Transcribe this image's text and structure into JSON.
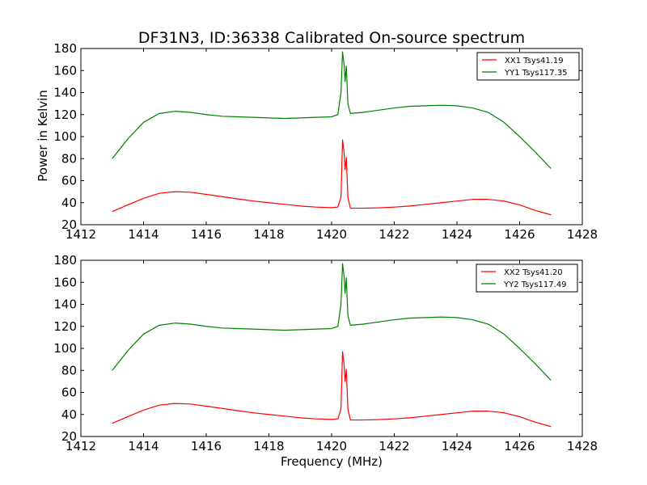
{
  "chart_data": {
    "title": "DF31N3, ID:36338 Calibrated On-source spectrum",
    "xlabel": "Frequency (MHz)",
    "ylabel": "Power in Kelvin",
    "colors": {
      "red": "#ff0000",
      "green": "#007f00"
    },
    "panels": [
      {
        "type": "line",
        "xlim": [
          1412,
          1428
        ],
        "ylim": [
          20,
          180
        ],
        "xticks": [
          "1412",
          "1414",
          "1416",
          "1418",
          "1420",
          "1422",
          "1424",
          "1426",
          "1428"
        ],
        "yticks": [
          "20",
          "40",
          "60",
          "80",
          "100",
          "120",
          "140",
          "160",
          "180"
        ],
        "legend_position": "top-right",
        "series": [
          {
            "name": "XX1 Tsys41.19",
            "color": "#ff0000",
            "x": [
              1413.0,
              1413.5,
              1414.0,
              1414.5,
              1415.0,
              1415.5,
              1416.0,
              1416.5,
              1417.0,
              1417.5,
              1418.0,
              1418.5,
              1419.0,
              1419.5,
              1420.0,
              1420.2,
              1420.3,
              1420.35,
              1420.4,
              1420.43,
              1420.47,
              1420.52,
              1420.6,
              1421.0,
              1421.5,
              1422.0,
              1422.5,
              1423.0,
              1423.5,
              1424.0,
              1424.5,
              1425.0,
              1425.5,
              1426.0,
              1426.5,
              1427.0
            ],
            "y": [
              32,
              38,
              44,
              48.5,
              50,
              49.5,
              47.5,
              45.5,
              43.5,
              41.5,
              40,
              38.5,
              37,
              36,
              35.5,
              36,
              45,
              97,
              85,
              70,
              81,
              45,
              35,
              35,
              35.3,
              36,
              37,
              38.5,
              40,
              41.5,
              43,
              43,
              41.5,
              38,
              33,
              29
            ]
          },
          {
            "name": "YY1 Tsys117.35",
            "color": "#007f00",
            "x": [
              1413.0,
              1413.5,
              1414.0,
              1414.5,
              1415.0,
              1415.5,
              1416.0,
              1416.5,
              1417.0,
              1417.5,
              1418.0,
              1418.5,
              1419.0,
              1419.5,
              1420.0,
              1420.2,
              1420.3,
              1420.35,
              1420.4,
              1420.43,
              1420.47,
              1420.52,
              1420.6,
              1421.0,
              1421.5,
              1422.0,
              1422.5,
              1423.0,
              1423.5,
              1424.0,
              1424.5,
              1425.0,
              1425.5,
              1426.0,
              1426.5,
              1427.0
            ],
            "y": [
              80,
              98,
              113,
              121,
              123,
              122,
              120,
              118.5,
              118,
              117.5,
              117,
              116.5,
              117,
              117.5,
              118,
              120,
              140,
              177,
              165,
              150,
              164,
              130,
              121,
              122,
              124,
              126,
              127.5,
              128,
              128.5,
              128,
              126,
              122,
              113,
              100,
              86,
              71
            ]
          }
        ]
      },
      {
        "type": "line",
        "xlim": [
          1412,
          1428
        ],
        "ylim": [
          20,
          180
        ],
        "xticks": [
          "1412",
          "1414",
          "1416",
          "1418",
          "1420",
          "1422",
          "1424",
          "1426",
          "1428"
        ],
        "yticks": [
          "20",
          "40",
          "60",
          "80",
          "100",
          "120",
          "140",
          "160",
          "180"
        ],
        "legend_position": "top-right",
        "series": [
          {
            "name": "XX2 Tsys41.20",
            "color": "#ff0000",
            "x": [
              1413.0,
              1413.5,
              1414.0,
              1414.5,
              1415.0,
              1415.5,
              1416.0,
              1416.5,
              1417.0,
              1417.5,
              1418.0,
              1418.5,
              1419.0,
              1419.5,
              1420.0,
              1420.2,
              1420.3,
              1420.35,
              1420.4,
              1420.43,
              1420.47,
              1420.52,
              1420.6,
              1421.0,
              1421.5,
              1422.0,
              1422.5,
              1423.0,
              1423.5,
              1424.0,
              1424.5,
              1425.0,
              1425.5,
              1426.0,
              1426.5,
              1427.0
            ],
            "y": [
              32,
              38,
              44,
              48.5,
              50,
              49.5,
              47.5,
              45.5,
              43.5,
              41.5,
              40,
              38.5,
              37,
              36,
              35.5,
              36,
              45,
              97,
              85,
              70,
              81,
              45,
              35,
              35,
              35.3,
              36,
              37,
              38.5,
              40,
              41.5,
              43,
              43,
              41.5,
              38,
              33,
              29
            ]
          },
          {
            "name": "YY2 Tsys117.49",
            "color": "#007f00",
            "x": [
              1413.0,
              1413.5,
              1414.0,
              1414.5,
              1415.0,
              1415.5,
              1416.0,
              1416.5,
              1417.0,
              1417.5,
              1418.0,
              1418.5,
              1419.0,
              1419.5,
              1420.0,
              1420.2,
              1420.3,
              1420.35,
              1420.4,
              1420.43,
              1420.47,
              1420.52,
              1420.6,
              1421.0,
              1421.5,
              1422.0,
              1422.5,
              1423.0,
              1423.5,
              1424.0,
              1424.5,
              1425.0,
              1425.5,
              1426.0,
              1426.5,
              1427.0
            ],
            "y": [
              80,
              98,
              113,
              121,
              123,
              122,
              120,
              118.5,
              118,
              117.5,
              117,
              116.5,
              117,
              117.5,
              118,
              120,
              140,
              177,
              165,
              150,
              164,
              130,
              121,
              122,
              124,
              126,
              127.5,
              128,
              128.5,
              128,
              126,
              122,
              113,
              100,
              86,
              71
            ]
          }
        ]
      }
    ]
  }
}
